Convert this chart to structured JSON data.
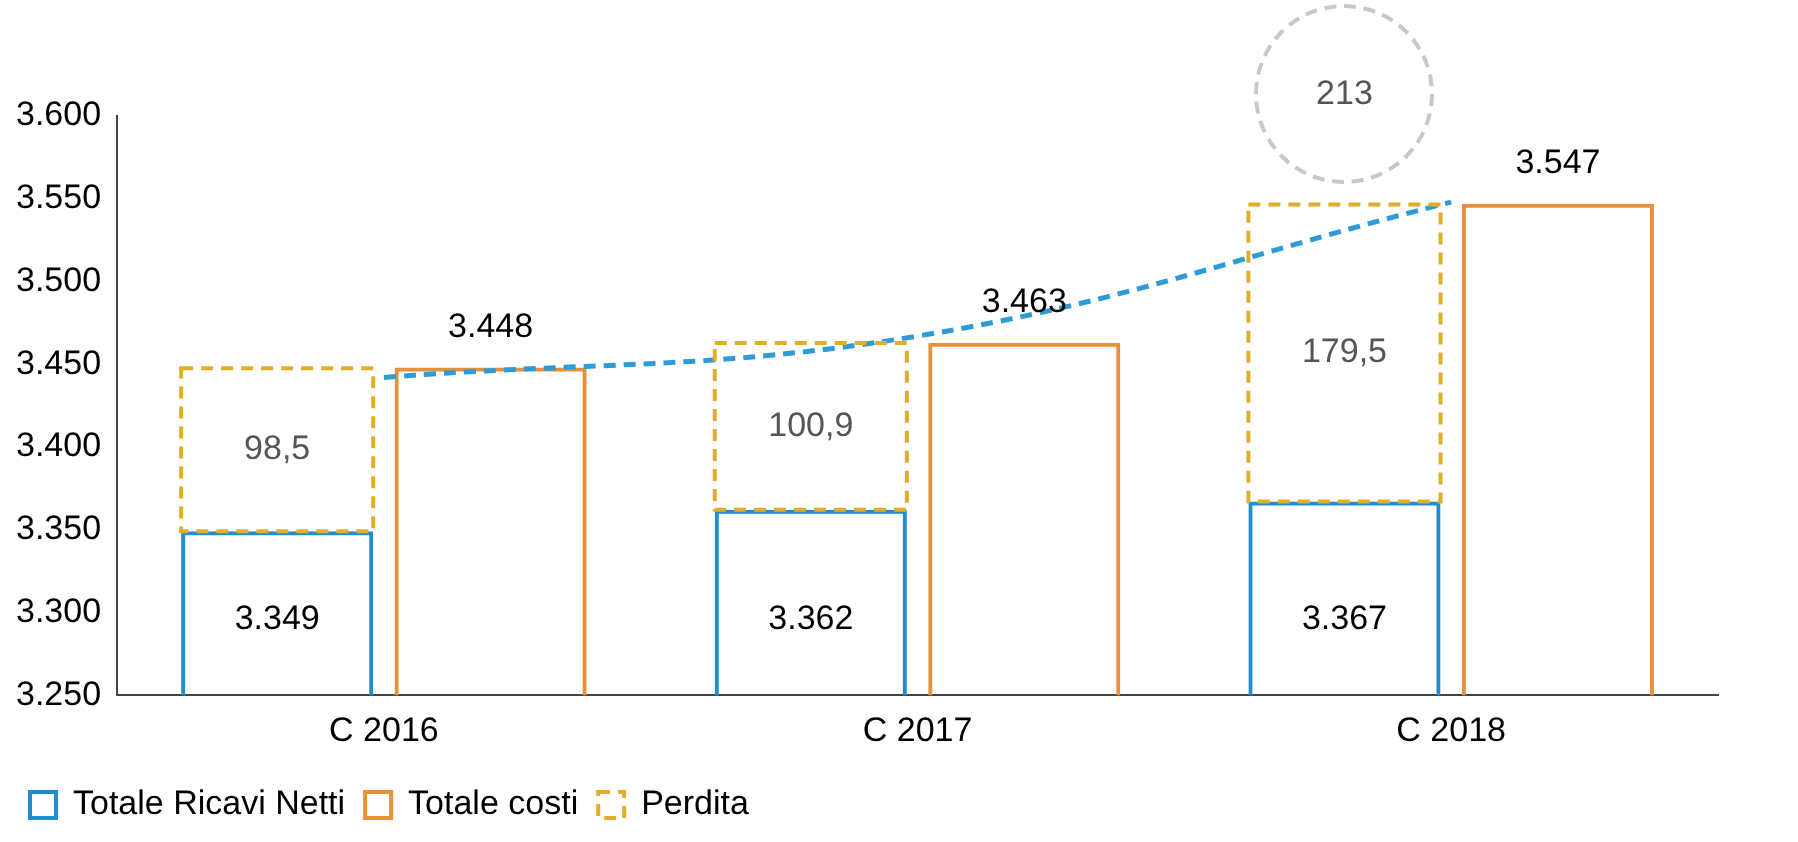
{
  "chart_data": {
    "type": "bar",
    "categories": [
      "C 2016",
      "C 2017",
      "C 2018"
    ],
    "ylim": [
      3250,
      3600
    ],
    "yticks": [
      {
        "value": 3250,
        "label": "3.250"
      },
      {
        "value": 3300,
        "label": "3.300"
      },
      {
        "value": 3350,
        "label": "3.350"
      },
      {
        "value": 3400,
        "label": "3.400"
      },
      {
        "value": 3450,
        "label": "3.450"
      },
      {
        "value": 3500,
        "label": "3.500"
      },
      {
        "value": 3550,
        "label": "3.550"
      },
      {
        "value": 3600,
        "label": "3.600"
      }
    ],
    "grid": false,
    "legend": "bottom left",
    "annotations": [
      "213"
    ],
    "series": [
      {
        "name": "Totale Ricavi Netti",
        "color": "#1f8dcf",
        "values": [
          3349,
          3362,
          3367
        ],
        "value_labels": [
          "3.349",
          "3.362",
          "3.367"
        ]
      },
      {
        "name": "Totale costi",
        "color": "#e8913a",
        "values": [
          3448,
          3463,
          3547
        ],
        "value_labels": [
          "3.448",
          "3.463",
          "3.547"
        ]
      },
      {
        "name": "Perdita",
        "color": "#e3ad2c",
        "base": [
          3349,
          3362,
          3367
        ],
        "values": [
          98.5,
          100.9,
          179.5
        ],
        "value_labels": [
          "98,5",
          "100,9",
          "179,5"
        ],
        "line_style": "dashed"
      },
      {
        "type": "line",
        "color": "#2e9bd6",
        "values": [
          3442,
          3467,
          3548
        ],
        "line_style": "dashed",
        "marker": "none"
      }
    ]
  }
}
